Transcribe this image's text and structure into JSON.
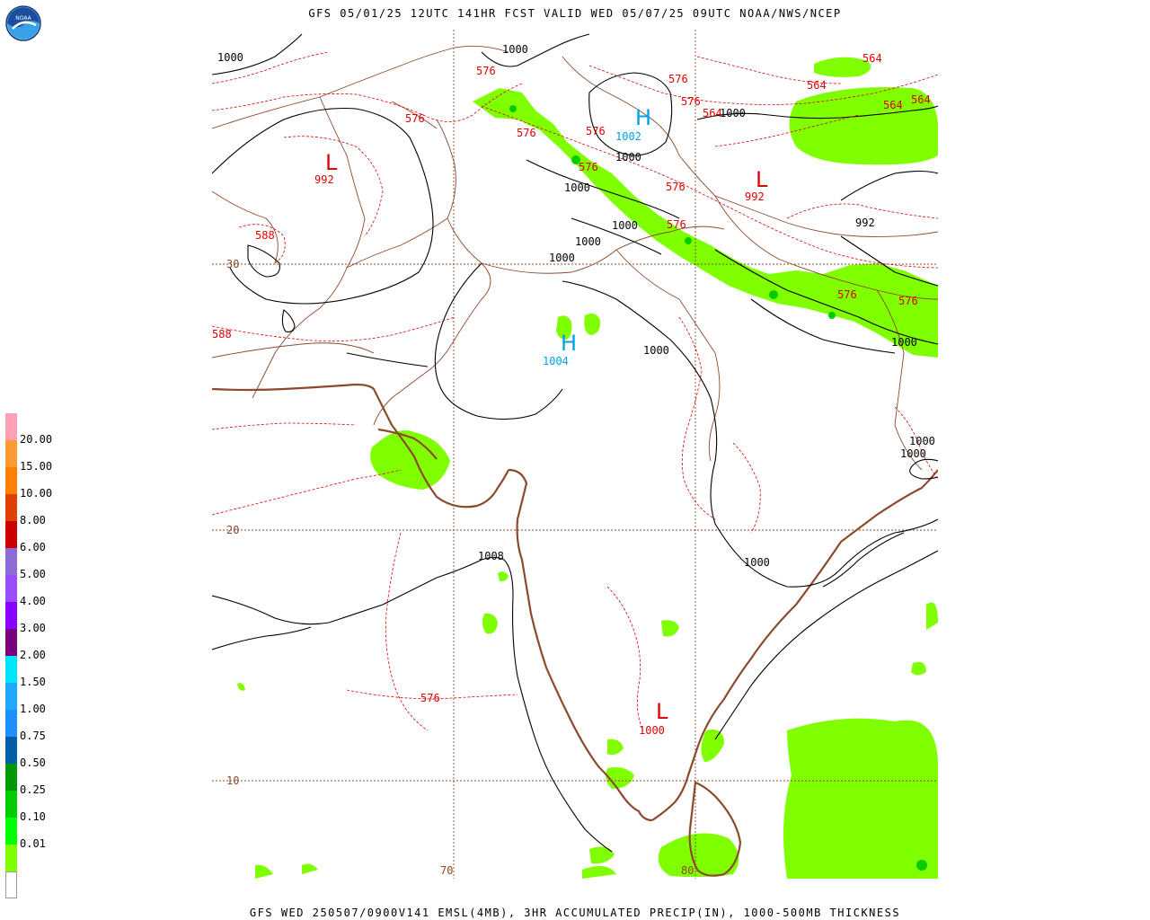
{
  "header": {
    "title": "GFS 05/01/25 12UTC 141HR FCST VALID WED 05/07/25 09UTC NOAA/NWS/NCEP",
    "footer": "GFS WED 250507/0900V141 EMSL(4MB), 3HR ACCUMULATED PRECIP(IN), 1000-500MB THICKNESS"
  },
  "logo": {
    "text": "NOAA"
  },
  "legend": {
    "labels": [
      "20.00",
      "15.00",
      "10.00",
      "8.00",
      "6.00",
      "5.00",
      "4.00",
      "3.00",
      "2.00",
      "1.50",
      "1.00",
      "0.75",
      "0.50",
      "0.25",
      "0.10",
      "0.01"
    ],
    "colors": [
      "#ffffff",
      "#80ff00",
      "#00ff00",
      "#00cc00",
      "#009900",
      "#005ea8",
      "#1e90ff",
      "#1ea8ff",
      "#00e5ff",
      "#7b007b",
      "#8b00ff",
      "#9a4dff",
      "#8c6ad8",
      "#cc0000",
      "#e04000",
      "#ff8000",
      "#ff9933",
      "#ffa0b4"
    ]
  },
  "map": {
    "grid_lat": [
      "30",
      "20",
      "10"
    ],
    "grid_lon": [
      "70",
      "80"
    ],
    "pressure_labels": [
      "1000",
      "1000",
      "1002",
      "1000",
      "1000",
      "1000",
      "1000",
      "1000",
      "992",
      "1000",
      "1000",
      "1000",
      "1000",
      "1000",
      "1008",
      "1000",
      "1004",
      "1000"
    ],
    "thickness_labels": [
      "576",
      "576",
      "576",
      "576",
      "576",
      "576",
      "576",
      "576",
      "576",
      "564",
      "564",
      "564",
      "564",
      "564",
      "576",
      "576",
      "588",
      "588",
      "576",
      "992",
      "992"
    ],
    "highs": [
      {
        "letter": "H",
        "value": "1002"
      },
      {
        "letter": "H",
        "value": "1004"
      }
    ],
    "lows": [
      {
        "letter": "L",
        "value": "992"
      },
      {
        "letter": "L",
        "value": "992"
      },
      {
        "letter": "L",
        "value": "1000"
      }
    ]
  }
}
